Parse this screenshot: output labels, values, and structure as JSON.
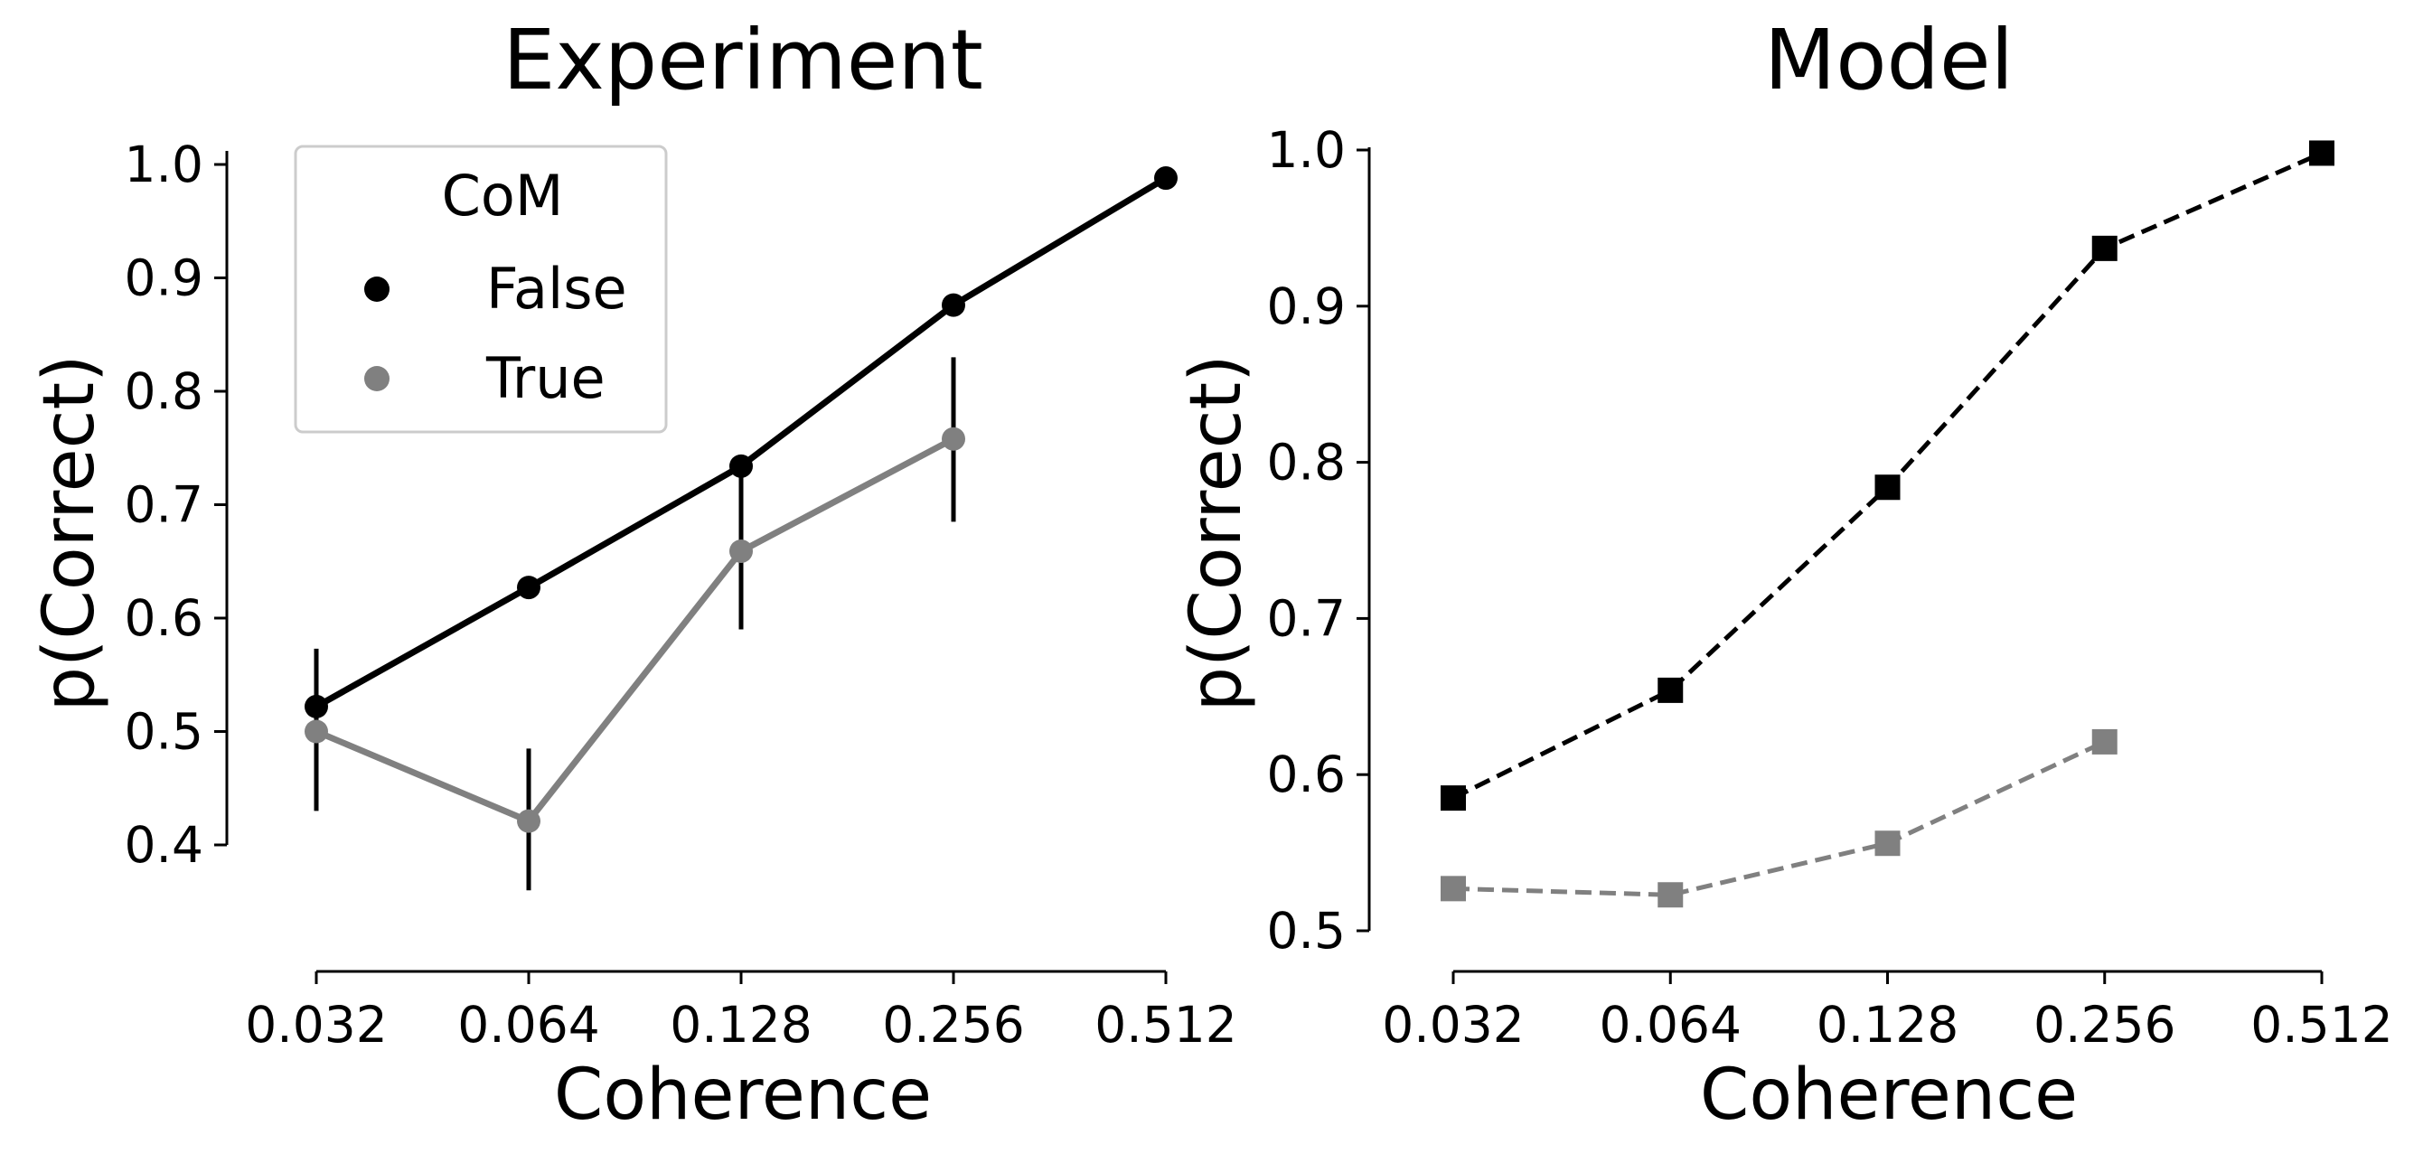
{
  "colors": {
    "false": "#000000",
    "true": "#808080"
  },
  "chart_data": [
    {
      "type": "line",
      "title": "Experiment",
      "xlabel": "Coherence",
      "ylabel": "p(Correct)",
      "categories": [
        "0.032",
        "0.064",
        "0.128",
        "0.256",
        "0.512"
      ],
      "ylim": [
        0.3,
        1.0
      ],
      "yticks": [
        "0.4",
        "0.5",
        "0.6",
        "0.7",
        "0.8",
        "0.9",
        "1.0"
      ],
      "marker": "circle",
      "linestyle": "solid",
      "legend": {
        "title": "CoM",
        "position": "top-left"
      },
      "series": [
        {
          "name": "False",
          "color_key": "false",
          "values": [
            0.522,
            0.627,
            0.734,
            0.876,
            0.988
          ],
          "err_low": [
            null,
            0.617,
            null,
            null,
            null
          ],
          "err_high": [
            null,
            0.637,
            null,
            null,
            null
          ]
        },
        {
          "name": "True",
          "color_key": "true",
          "values": [
            0.5,
            0.421,
            0.659,
            0.758,
            null
          ],
          "err_low": [
            0.43,
            0.36,
            0.59,
            0.685,
            null
          ],
          "err_high": [
            0.573,
            0.485,
            0.725,
            0.83,
            null
          ],
          "errcolor": "#000000"
        }
      ]
    },
    {
      "type": "line",
      "title": "Model",
      "xlabel": "Coherence",
      "ylabel": "p(Correct)",
      "categories": [
        "0.032",
        "0.064",
        "0.128",
        "0.256",
        "0.512"
      ],
      "ylim": [
        0.5,
        1.0
      ],
      "yticks": [
        "0.5",
        "0.6",
        "0.7",
        "0.8",
        "0.9",
        "1.0"
      ],
      "marker": "square",
      "linestyle": "dashed",
      "series": [
        {
          "color_key": "false",
          "values": [
            0.585,
            0.654,
            0.784,
            0.937,
            0.998
          ]
        },
        {
          "color_key": "true",
          "values": [
            0.527,
            0.523,
            0.556,
            0.621,
            null
          ]
        }
      ]
    }
  ]
}
